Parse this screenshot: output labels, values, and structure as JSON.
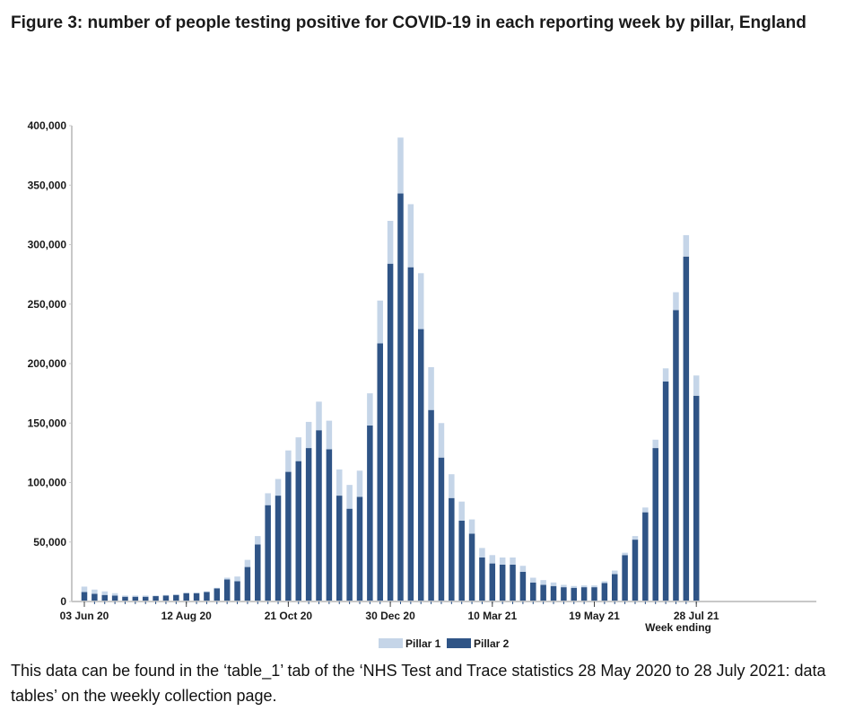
{
  "title": "Figure 3: number of people testing positive for COVID-19 in each reporting week by pillar, England",
  "footer": "This data can be found in the ‘table_1’ tab of the ‘NHS Test and Trace statistics 28 May 2020 to 28 July 2021: data tables’ on the weekly collection page.",
  "colors": {
    "pillar1": "#c5d5e8",
    "pillar2": "#2f5486",
    "axis": "#c8c8c8"
  },
  "chart_data": {
    "type": "bar",
    "stacked": true,
    "title": "Figure 3: number of people testing positive for COVID-19 in each reporting week by pillar, England",
    "xlabel": "Week ending",
    "ylabel": "",
    "ylim": [
      0,
      400000
    ],
    "yticks": [
      0,
      50000,
      100000,
      150000,
      200000,
      250000,
      300000,
      350000,
      400000
    ],
    "ytick_labels": [
      "0",
      "50,000",
      "100,000",
      "150,000",
      "200,000",
      "250,000",
      "300,000",
      "350,000",
      "400,000"
    ],
    "xtick_labels": [
      {
        "index": 0,
        "label": "03 Jun 20"
      },
      {
        "index": 10,
        "label": "12 Aug 20"
      },
      {
        "index": 20,
        "label": "21 Oct 20"
      },
      {
        "index": 30,
        "label": "30 Dec 20"
      },
      {
        "index": 40,
        "label": "10 Mar 21"
      },
      {
        "index": 50,
        "label": "19 May 21"
      },
      {
        "index": 60,
        "label": "28 Jul 21"
      }
    ],
    "grid": false,
    "legend": {
      "position": "bottom-center",
      "entries": [
        "Pillar 1",
        "Pillar 2"
      ]
    },
    "categories": [
      "03 Jun 20",
      "10 Jun 20",
      "17 Jun 20",
      "24 Jun 20",
      "01 Jul 20",
      "08 Jul 20",
      "15 Jul 20",
      "22 Jul 20",
      "29 Jul 20",
      "05 Aug 20",
      "12 Aug 20",
      "19 Aug 20",
      "26 Aug 20",
      "02 Sep 20",
      "09 Sep 20",
      "16 Sep 20",
      "23 Sep 20",
      "30 Sep 20",
      "07 Oct 20",
      "14 Oct 20",
      "21 Oct 20",
      "28 Oct 20",
      "04 Nov 20",
      "11 Nov 20",
      "18 Nov 20",
      "25 Nov 20",
      "02 Dec 20",
      "09 Dec 20",
      "16 Dec 20",
      "23 Dec 20",
      "30 Dec 20",
      "06 Jan 21",
      "13 Jan 21",
      "20 Jan 21",
      "27 Jan 21",
      "03 Feb 21",
      "10 Feb 21",
      "17 Feb 21",
      "24 Feb 21",
      "03 Mar 21",
      "10 Mar 21",
      "17 Mar 21",
      "24 Mar 21",
      "31 Mar 21",
      "07 Apr 21",
      "14 Apr 21",
      "21 Apr 21",
      "28 Apr 21",
      "05 May 21",
      "12 May 21",
      "19 May 21",
      "26 May 21",
      "02 Jun 21",
      "09 Jun 21",
      "16 Jun 21",
      "23 Jun 21",
      "30 Jun 21",
      "07 Jul 21",
      "14 Jul 21",
      "21 Jul 21",
      "28 Jul 21"
    ],
    "series": [
      {
        "name": "Pillar 2",
        "values": [
          8000,
          6500,
          5500,
          5000,
          4000,
          4000,
          4000,
          4500,
          5000,
          5500,
          7000,
          7000,
          8000,
          11000,
          18500,
          17000,
          29000,
          48000,
          81000,
          89000,
          109000,
          118000,
          129000,
          144000,
          128000,
          89000,
          78000,
          88000,
          148000,
          217000,
          284000,
          343000,
          281000,
          229000,
          161000,
          121000,
          87000,
          68000,
          57000,
          37000,
          32000,
          31000,
          31000,
          25000,
          16000,
          14000,
          13000,
          12000,
          11500,
          12000,
          12000,
          15500,
          23000,
          39000,
          52000,
          75000,
          129000,
          185000,
          245000,
          290000,
          173000
        ]
      },
      {
        "name": "Pillar 1",
        "values": [
          4500,
          3500,
          3000,
          2000,
          1000,
          1000,
          1000,
          500,
          500,
          500,
          500,
          500,
          500,
          500,
          1500,
          4000,
          6000,
          7000,
          10000,
          14000,
          18000,
          20000,
          22000,
          24000,
          24000,
          22000,
          20000,
          22000,
          27000,
          36000,
          36000,
          47000,
          53000,
          47000,
          36000,
          29000,
          20000,
          16000,
          12000,
          8000,
          7000,
          6000,
          6000,
          5000,
          4000,
          4000,
          3000,
          2000,
          1500,
          1500,
          1500,
          1500,
          3000,
          2000,
          3000,
          4000,
          7000,
          11000,
          15000,
          18000,
          17000
        ]
      }
    ]
  }
}
